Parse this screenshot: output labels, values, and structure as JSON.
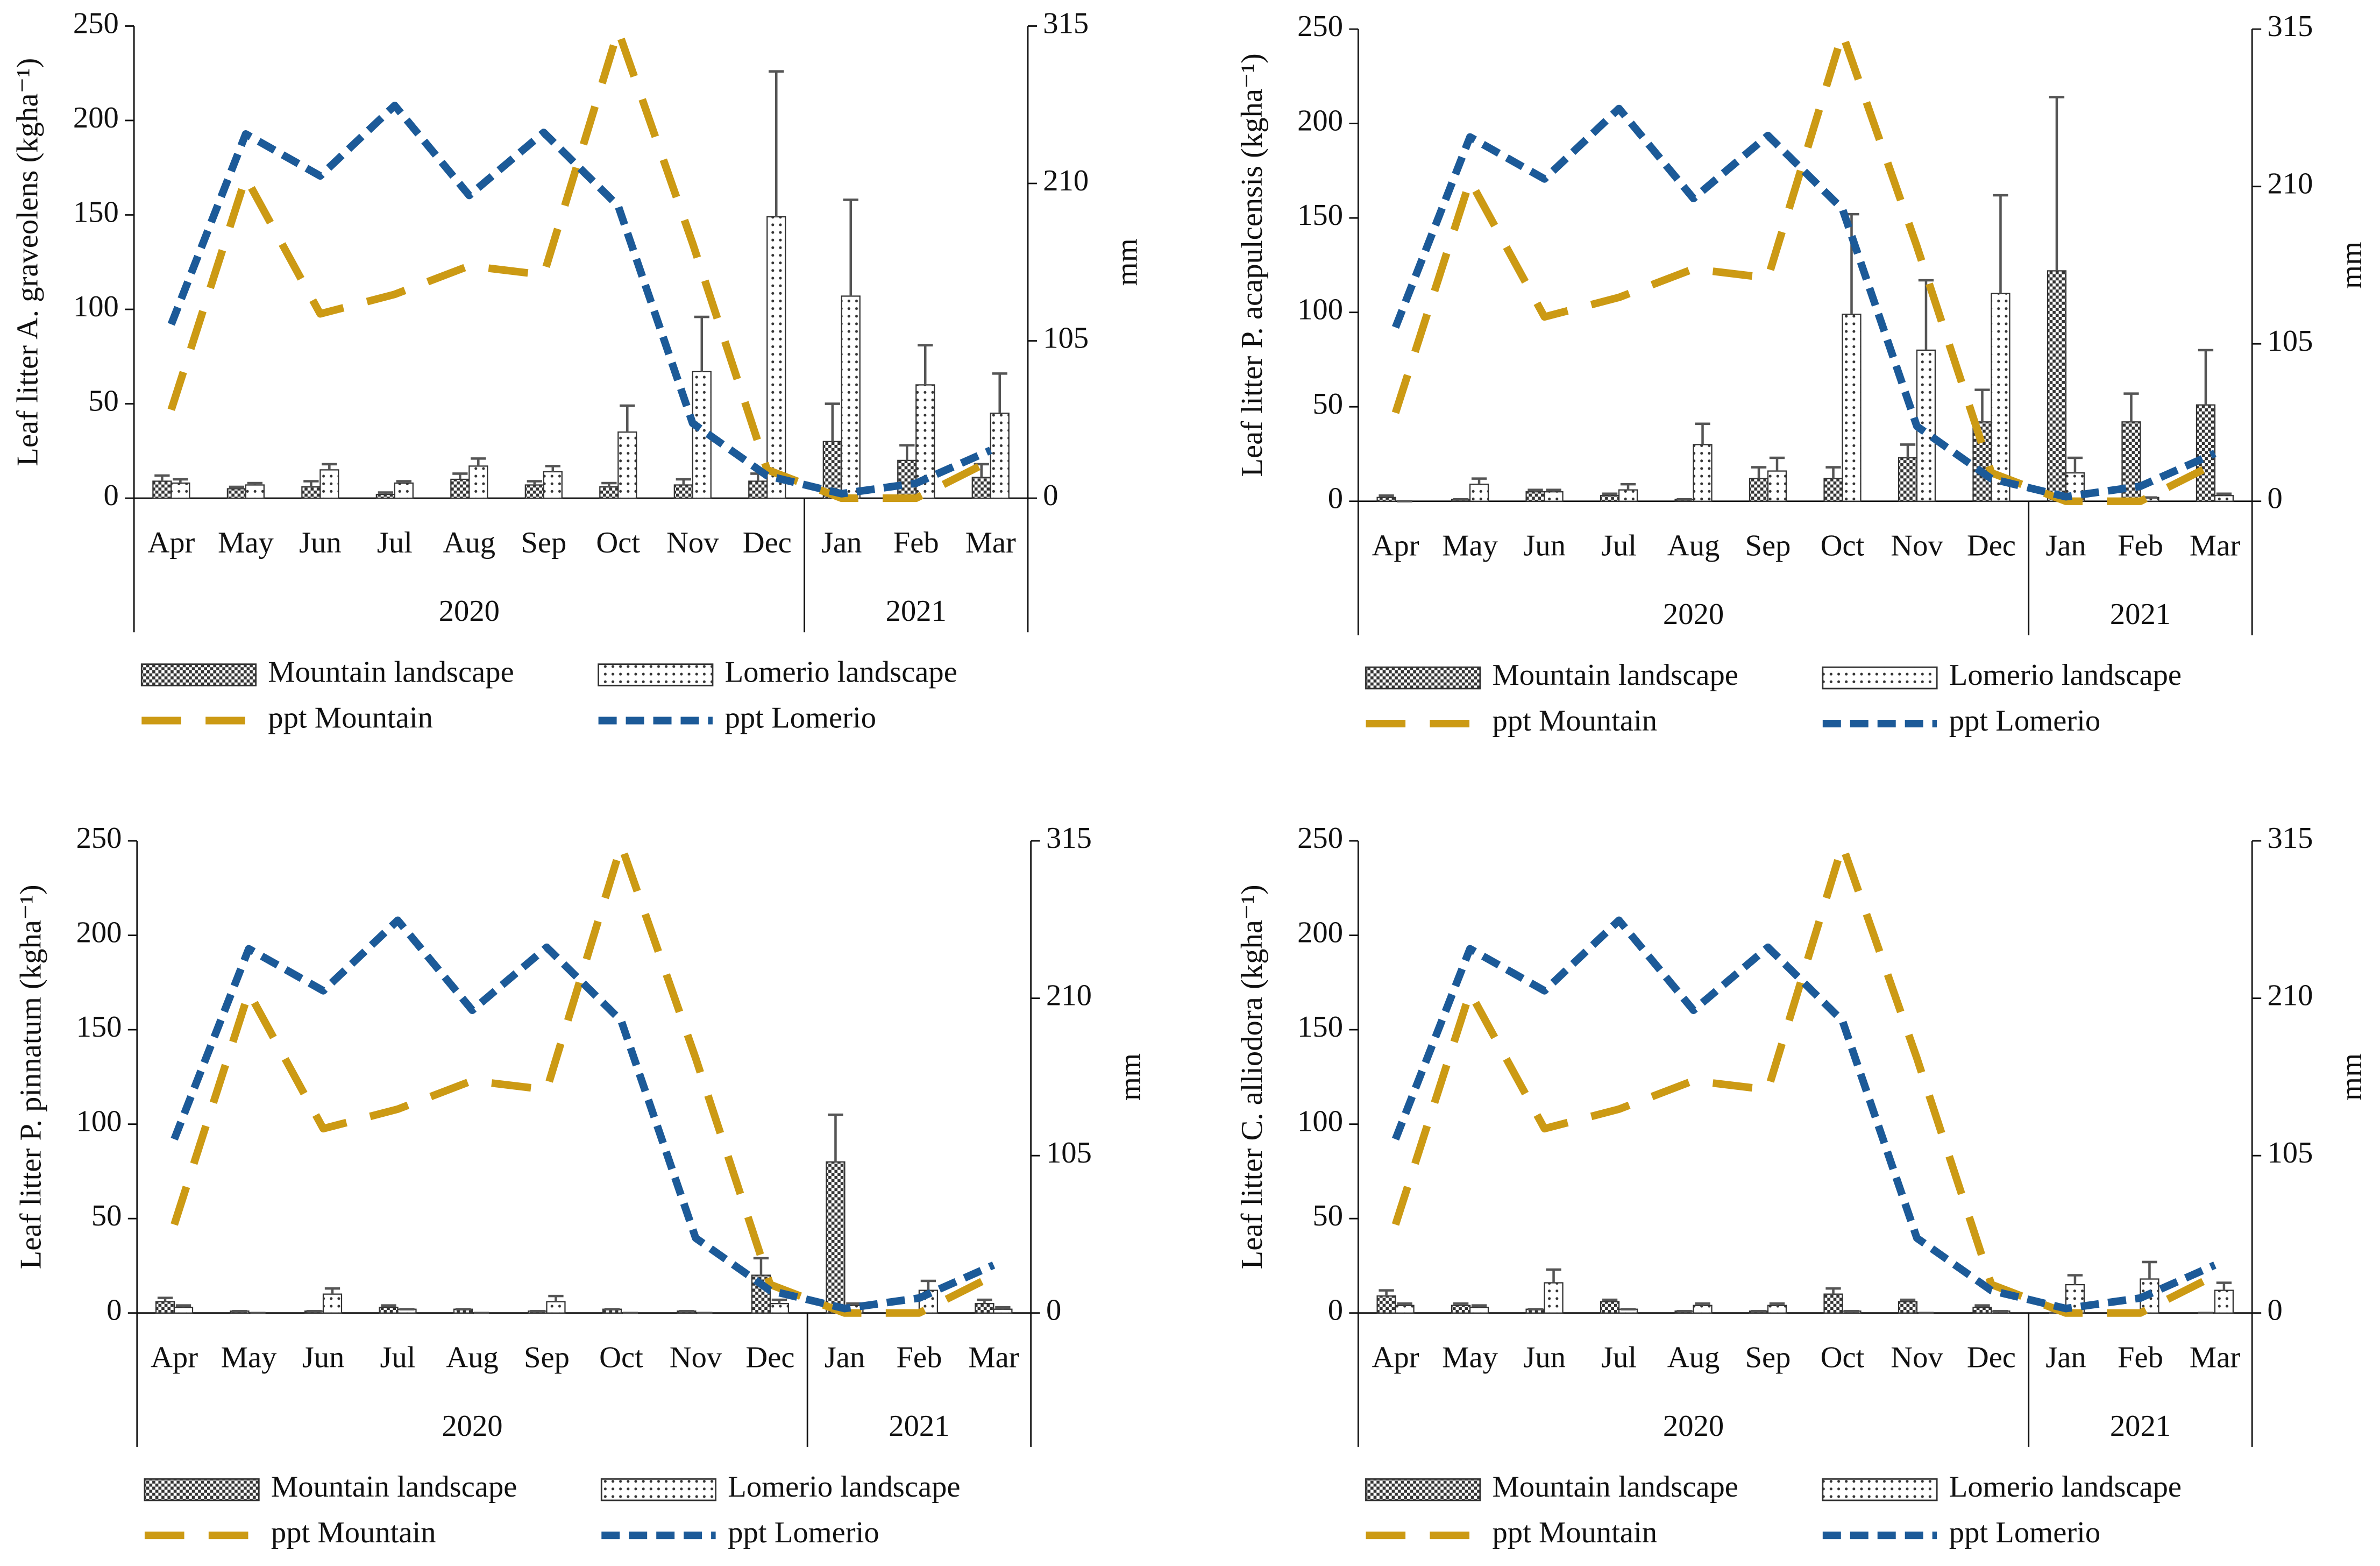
{
  "chart_data": [
    {
      "type": "bar",
      "ylabel": "Leaf litter A. graveolens (kgha⁻¹)",
      "y2label": "mm",
      "categories": [
        "Apr",
        "May",
        "Jun",
        "Jul",
        "Aug",
        "Sep",
        "Oct",
        "Nov",
        "Dec",
        "Jan",
        "Feb",
        "Mar"
      ],
      "x_groups": [
        "2020",
        "2020",
        "2020",
        "2020",
        "2020",
        "2020",
        "2020",
        "2020",
        "2020",
        "2021",
        "2021",
        "2021"
      ],
      "ylim": [
        0,
        250
      ],
      "yticks": [
        0,
        50,
        100,
        150,
        200,
        250
      ],
      "y2lim": [
        0,
        315
      ],
      "y2ticks": [
        0,
        105,
        210,
        315
      ],
      "series": [
        {
          "name": "Mountain landscape",
          "type": "bar",
          "pattern": "check",
          "color": "#333333",
          "values": [
            9,
            5,
            6,
            2,
            10,
            7,
            6,
            7,
            9,
            30,
            20,
            11
          ],
          "errors": [
            3,
            1,
            3,
            1,
            3,
            2,
            2,
            3,
            4,
            20,
            8,
            7
          ]
        },
        {
          "name": "Lomerio landscape",
          "type": "bar",
          "pattern": "dots",
          "color": "#333333",
          "values": [
            8,
            7,
            15,
            8,
            17,
            14,
            35,
            67,
            149,
            107,
            60,
            45
          ],
          "errors": [
            2,
            1,
            3,
            1,
            4,
            3,
            14,
            29,
            77,
            51,
            21,
            21
          ]
        },
        {
          "name": "ppt Mountain",
          "type": "line",
          "axis": "y2",
          "color": "#cc9a14",
          "dash": "long",
          "values": [
            59,
            214,
            123,
            136,
            155,
            149,
            312,
            170,
            19,
            0,
            0,
            25
          ]
        },
        {
          "name": "ppt Lomerio",
          "type": "line",
          "axis": "y2",
          "color": "#1c5a98",
          "dash": "short",
          "values": [
            116,
            243,
            215,
            262,
            202,
            244,
            195,
            50,
            15,
            3,
            10,
            32
          ]
        }
      ]
    },
    {
      "type": "bar",
      "ylabel": "Leaf litter P. acapulcensis (kgha⁻¹)",
      "y2label": "mm",
      "categories": [
        "Apr",
        "May",
        "Jun",
        "Jul",
        "Aug",
        "Sep",
        "Oct",
        "Nov",
        "Dec",
        "Jan",
        "Feb",
        "Mar"
      ],
      "x_groups": [
        "2020",
        "2020",
        "2020",
        "2020",
        "2020",
        "2020",
        "2020",
        "2020",
        "2020",
        "2021",
        "2021",
        "2021"
      ],
      "ylim": [
        0,
        250
      ],
      "yticks": [
        0,
        50,
        100,
        150,
        200,
        250
      ],
      "y2lim": [
        0,
        315
      ],
      "y2ticks": [
        0,
        105,
        210,
        315
      ],
      "series": [
        {
          "name": "Mountain landscape",
          "type": "bar",
          "pattern": "check",
          "color": "#333333",
          "values": [
            2,
            1,
            5,
            3,
            1,
            12,
            12,
            23,
            42,
            122,
            42,
            51
          ],
          "errors": [
            1,
            0,
            1,
            1,
            0,
            6,
            6,
            7,
            17,
            92,
            15,
            29
          ]
        },
        {
          "name": "Lomerio landscape",
          "type": "bar",
          "pattern": "dots",
          "color": "#333333",
          "values": [
            0,
            9,
            5,
            6,
            30,
            16,
            99,
            80,
            110,
            15,
            2,
            3
          ],
          "errors": [
            0,
            3,
            1,
            3,
            11,
            7,
            53,
            37,
            52,
            8,
            0,
            1
          ]
        },
        {
          "name": "ppt Mountain",
          "type": "line",
          "axis": "y2",
          "color": "#cc9a14",
          "dash": "long",
          "values": [
            59,
            214,
            123,
            136,
            155,
            149,
            312,
            170,
            19,
            0,
            0,
            25
          ]
        },
        {
          "name": "ppt Lomerio",
          "type": "line",
          "axis": "y2",
          "color": "#1c5a98",
          "dash": "short",
          "values": [
            116,
            243,
            215,
            262,
            202,
            244,
            195,
            50,
            15,
            3,
            10,
            32
          ]
        }
      ]
    },
    {
      "type": "bar",
      "ylabel": "Leaf litter P. pinnatum (kgha⁻¹)",
      "y2label": "mm",
      "categories": [
        "Apr",
        "May",
        "Jun",
        "Jul",
        "Aug",
        "Sep",
        "Oct",
        "Nov",
        "Dec",
        "Jan",
        "Feb",
        "Mar"
      ],
      "x_groups": [
        "2020",
        "2020",
        "2020",
        "2020",
        "2020",
        "2020",
        "2020",
        "2020",
        "2020",
        "2021",
        "2021",
        "2021"
      ],
      "ylim": [
        0,
        250
      ],
      "yticks": [
        0,
        50,
        100,
        150,
        200,
        250
      ],
      "y2lim": [
        0,
        315
      ],
      "y2ticks": [
        0,
        105,
        210,
        315
      ],
      "series": [
        {
          "name": "Mountain landscape",
          "type": "bar",
          "pattern": "check",
          "color": "#333333",
          "values": [
            6,
            1,
            1,
            3,
            2,
            1,
            2,
            1,
            20,
            80,
            1,
            5
          ],
          "errors": [
            2,
            0,
            0,
            1,
            0,
            0,
            0,
            0,
            9,
            25,
            0,
            2
          ]
        },
        {
          "name": "Lomerio landscape",
          "type": "bar",
          "pattern": "dots",
          "color": "#333333",
          "values": [
            3,
            0,
            10,
            2,
            0,
            6,
            0,
            0,
            5,
            4,
            12,
            2
          ],
          "errors": [
            1,
            0,
            3,
            0,
            0,
            3,
            0,
            0,
            2,
            1,
            5,
            1
          ]
        },
        {
          "name": "ppt Mountain",
          "type": "line",
          "axis": "y2",
          "color": "#cc9a14",
          "dash": "long",
          "values": [
            59,
            214,
            123,
            136,
            155,
            149,
            312,
            170,
            19,
            0,
            0,
            25
          ]
        },
        {
          "name": "ppt Lomerio",
          "type": "line",
          "axis": "y2",
          "color": "#1c5a98",
          "dash": "short",
          "values": [
            116,
            243,
            215,
            262,
            202,
            244,
            195,
            50,
            15,
            3,
            10,
            32
          ]
        }
      ]
    },
    {
      "type": "bar",
      "ylabel": "Leaf litter C. alliodora (kgha⁻¹)",
      "y2label": "mm",
      "categories": [
        "Apr",
        "May",
        "Jun",
        "Jul",
        "Aug",
        "Sep",
        "Oct",
        "Nov",
        "Dec",
        "Jan",
        "Feb",
        "Mar"
      ],
      "x_groups": [
        "2020",
        "2020",
        "2020",
        "2020",
        "2020",
        "2020",
        "2020",
        "2020",
        "2020",
        "2021",
        "2021",
        "2021"
      ],
      "ylim": [
        0,
        250
      ],
      "yticks": [
        0,
        50,
        100,
        150,
        200,
        250
      ],
      "y2lim": [
        0,
        315
      ],
      "y2ticks": [
        0,
        105,
        210,
        315
      ],
      "series": [
        {
          "name": "Mountain landscape",
          "type": "bar",
          "pattern": "check",
          "color": "#333333",
          "values": [
            9,
            4,
            2,
            6,
            1,
            1,
            10,
            6,
            3,
            0,
            1,
            0
          ],
          "errors": [
            3,
            1,
            0,
            1,
            0,
            0,
            3,
            1,
            1,
            0,
            0,
            0
          ]
        },
        {
          "name": "Lomerio landscape",
          "type": "bar",
          "pattern": "dots",
          "color": "#333333",
          "values": [
            4,
            3,
            16,
            2,
            4,
            4,
            1,
            0,
            1,
            15,
            18,
            12
          ],
          "errors": [
            1,
            1,
            7,
            0,
            1,
            1,
            0,
            0,
            0,
            5,
            9,
            4
          ]
        },
        {
          "name": "ppt Mountain",
          "type": "line",
          "axis": "y2",
          "color": "#cc9a14",
          "dash": "long",
          "values": [
            59,
            214,
            123,
            136,
            155,
            149,
            312,
            170,
            19,
            0,
            0,
            25
          ]
        },
        {
          "name": "ppt Lomerio",
          "type": "line",
          "axis": "y2",
          "color": "#1c5a98",
          "dash": "short",
          "values": [
            116,
            243,
            215,
            262,
            202,
            244,
            195,
            50,
            15,
            3,
            10,
            32
          ]
        }
      ]
    }
  ]
}
